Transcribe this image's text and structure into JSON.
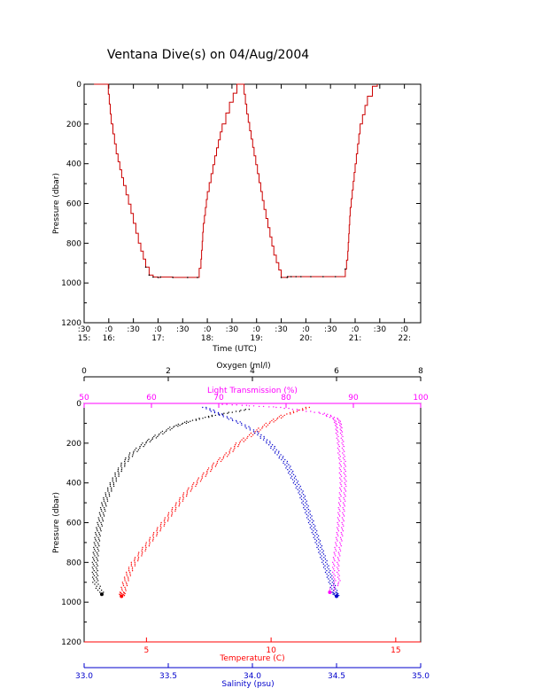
{
  "title": "Ventana Dive(s) on 04/Aug/2004",
  "colors": {
    "axis": "#000000",
    "depth_trace": "#cc0000",
    "oxygen": "#000000",
    "temperature": "#ff0000",
    "salinity": "#0000cc",
    "light_transmission": "#ff00ff"
  },
  "chart_data": [
    {
      "type": "line",
      "xlabel": "Time (UTC)",
      "ylabel": "Pressure (dbar)",
      "y_reversed": true,
      "ylim": [
        1200,
        0
      ],
      "y_ticks": [
        0,
        200,
        400,
        600,
        800,
        1000,
        1200
      ],
      "x_unit": "hours UTC",
      "xlim": [
        15.5,
        22.33
      ],
      "x_ticks": [
        {
          "t": 15.5,
          "top": ":30",
          "bottom": "15:"
        },
        {
          "t": 16.0,
          "top": ":0",
          "bottom": "16:"
        },
        {
          "t": 16.5,
          "top": ":30",
          "bottom": ""
        },
        {
          "t": 17.0,
          "top": ":0",
          "bottom": "17:"
        },
        {
          "t": 17.5,
          "top": ":30",
          "bottom": ""
        },
        {
          "t": 18.0,
          "top": ":0",
          "bottom": "18:"
        },
        {
          "t": 18.5,
          "top": ":30",
          "bottom": ""
        },
        {
          "t": 19.0,
          "top": ":0",
          "bottom": "19:"
        },
        {
          "t": 19.5,
          "top": ":30",
          "bottom": ""
        },
        {
          "t": 20.0,
          "top": ":0",
          "bottom": "20:"
        },
        {
          "t": 20.5,
          "top": ":30",
          "bottom": ""
        },
        {
          "t": 21.0,
          "top": ":0",
          "bottom": "21:"
        },
        {
          "t": 21.5,
          "top": ":30",
          "bottom": ""
        },
        {
          "t": 22.0,
          "top": ":0",
          "bottom": "22:"
        }
      ],
      "series": [
        {
          "x": [
            15.7,
            15.97,
            16.05,
            16.15,
            16.3,
            16.45,
            16.6,
            16.75,
            16.82,
            16.9,
            17.0,
            17.05,
            17.3,
            17.6,
            17.8,
            17.87,
            17.92,
            18.0,
            18.15,
            18.3,
            18.45,
            18.6,
            18.66,
            18.72,
            18.8,
            18.95,
            19.15,
            19.35,
            19.5,
            19.62,
            19.63,
            19.7,
            19.8,
            19.9,
            20.1,
            20.35,
            20.6,
            20.8,
            20.85,
            20.9,
            21.0,
            21.1,
            21.25,
            21.35,
            21.45
          ],
          "y": [
            0,
            0,
            200,
            350,
            510,
            650,
            800,
            920,
            960,
            970,
            972,
            970,
            972,
            972,
            972,
            880,
            700,
            540,
            360,
            200,
            90,
            0,
            0,
            0,
            150,
            360,
            630,
            860,
            972,
            972,
            968,
            968,
            968,
            968,
            968,
            968,
            968,
            930,
            840,
            620,
            400,
            200,
            60,
            10,
            0
          ]
        }
      ]
    },
    {
      "type": "scatter",
      "ylabel": "Pressure (dbar)",
      "y_reversed": true,
      "ylim": [
        1200,
        0
      ],
      "y_ticks": [
        0,
        200,
        400,
        600,
        800,
        1000,
        1200
      ],
      "axes": {
        "oxygen": {
          "label": "Oxygen (ml/l)",
          "range": [
            0,
            8
          ],
          "ticks": [
            0,
            2,
            4,
            6,
            8
          ]
        },
        "light_transmission": {
          "label": "Light Transmission (%)",
          "range": [
            50,
            100
          ],
          "ticks": [
            50,
            60,
            70,
            80,
            90,
            100
          ]
        },
        "temperature": {
          "label": "Temperature (C)",
          "range": [
            2.5,
            16
          ],
          "ticks": [
            5,
            10,
            15
          ]
        },
        "salinity": {
          "label": "Salinity (psu)",
          "range": [
            33.0,
            35.0
          ],
          "ticks": [
            "33.0",
            "33.5",
            "34.0",
            "34.5",
            "35.0"
          ]
        }
      },
      "series": [
        {
          "name": "Oxygen (ml/l)",
          "axis": "oxygen",
          "pressure": [
            30,
            60,
            90,
            120,
            160,
            200,
            250,
            300,
            350,
            400,
            450,
            500,
            550,
            600,
            650,
            700,
            750,
            800,
            850,
            900,
            960
          ],
          "values": [
            3.9,
            3.1,
            2.5,
            2.1,
            1.75,
            1.45,
            1.15,
            0.95,
            0.8,
            0.68,
            0.57,
            0.48,
            0.43,
            0.38,
            0.33,
            0.3,
            0.28,
            0.26,
            0.26,
            0.27,
            0.42
          ]
        },
        {
          "name": "Light Transmission (%)",
          "axis": "light_transmission",
          "pressure": [
            5,
            20,
            50,
            80,
            110,
            150,
            200,
            250,
            300,
            350,
            400,
            450,
            500,
            550,
            600,
            650,
            700,
            750,
            800,
            850,
            900,
            950
          ],
          "values": [
            71,
            79,
            85.5,
            87.5,
            87.8,
            87.9,
            88.1,
            88.2,
            88.4,
            88.4,
            88.5,
            88.4,
            88.3,
            88.2,
            88.1,
            88.0,
            87.8,
            87.6,
            87.4,
            87.4,
            87.6,
            86.5
          ]
        },
        {
          "name": "Temperature (C)",
          "axis": "temperature",
          "pressure": [
            20,
            60,
            100,
            150,
            200,
            250,
            300,
            350,
            400,
            450,
            500,
            550,
            600,
            650,
            700,
            750,
            800,
            850,
            900,
            950,
            970
          ],
          "values": [
            11.5,
            10.5,
            9.9,
            9.3,
            8.7,
            8.3,
            7.8,
            7.4,
            7.0,
            6.6,
            6.3,
            6.0,
            5.7,
            5.4,
            5.1,
            4.8,
            4.5,
            4.3,
            4.15,
            4.05,
            4.0
          ]
        },
        {
          "name": "Salinity (psu)",
          "axis": "salinity",
          "pressure": [
            20,
            60,
            100,
            150,
            200,
            250,
            300,
            350,
            400,
            450,
            500,
            550,
            600,
            650,
            700,
            750,
            800,
            850,
            900,
            950,
            970
          ],
          "values": [
            33.72,
            33.82,
            33.93,
            34.03,
            34.1,
            34.15,
            34.2,
            34.23,
            34.26,
            34.29,
            34.31,
            34.33,
            34.35,
            34.37,
            34.39,
            34.41,
            34.43,
            34.45,
            34.47,
            34.49,
            34.5
          ]
        }
      ]
    }
  ]
}
